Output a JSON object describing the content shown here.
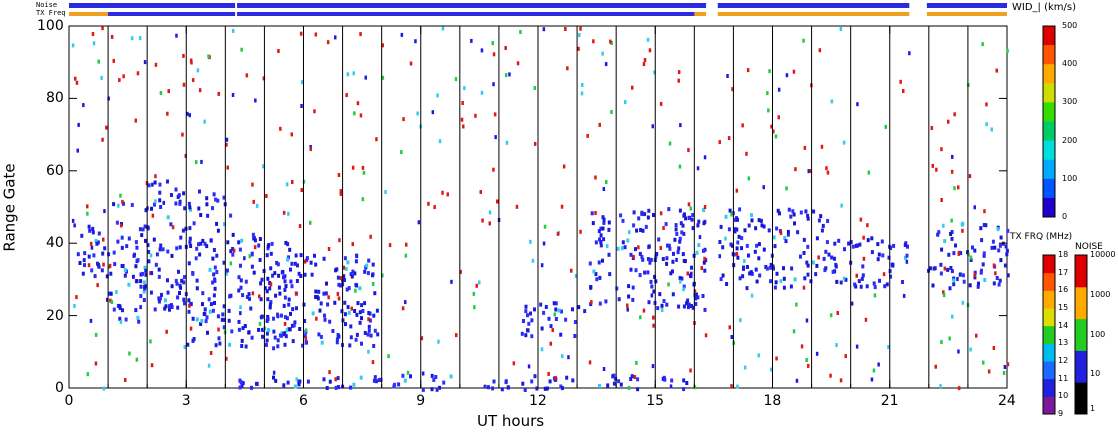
{
  "chart_data": {
    "type": "heatmap",
    "title": "",
    "xlabel": "UT hours",
    "ylabel": "Range Gate",
    "xlim": [
      0,
      24
    ],
    "ylim": [
      0,
      100
    ],
    "xticks": [
      "0",
      "3",
      "6",
      "9",
      "12",
      "15",
      "18",
      "21",
      "24"
    ],
    "yticks": [
      "0",
      "20",
      "40",
      "60",
      "80",
      "100"
    ],
    "colorbar_main": {
      "label": "WID_| (km/s)",
      "range": [
        0,
        500
      ],
      "ticks": [
        "0",
        "100",
        "200",
        "300",
        "400",
        "500"
      ]
    },
    "colorbar_txfreq": {
      "label": "TX FRQ (MHz)",
      "ticks": [
        "9",
        "10",
        "11",
        "12",
        "13",
        "14",
        "15",
        "16",
        "17",
        "18"
      ]
    },
    "colorbar_noise": {
      "label": "NOISE",
      "ticks": [
        "1",
        "10",
        "100",
        "1000",
        "10000"
      ]
    },
    "top_bars": {
      "noise_label": "Noise",
      "freq_label": "TX Freq"
    },
    "scan_boundaries_ut": [
      1,
      2,
      3,
      4,
      5,
      6,
      7,
      8,
      9,
      10,
      11,
      12,
      13,
      14,
      15,
      16,
      17,
      18,
      19,
      20,
      21,
      22,
      23
    ],
    "data_gaps_ut": [
      [
        4.25,
        4.3
      ],
      [
        16.3,
        16.6
      ],
      [
        21.5,
        21.95
      ]
    ],
    "echo_regions": [
      {
        "t0": 0.1,
        "t1": 1.0,
        "g0": 30,
        "g1": 46
      },
      {
        "t0": 1.0,
        "t1": 2.0,
        "g0": 18,
        "g1": 52
      },
      {
        "t0": 2.0,
        "t1": 3.0,
        "g0": 22,
        "g1": 58
      },
      {
        "t0": 3.0,
        "t1": 4.2,
        "g0": 12,
        "g1": 55
      },
      {
        "t0": 4.3,
        "t1": 5.7,
        "g0": 11,
        "g1": 43
      },
      {
        "t0": 5.0,
        "t1": 7.8,
        "g0": 12,
        "g1": 38
      },
      {
        "t0": 7.0,
        "t1": 8.0,
        "g0": 14,
        "g1": 22
      },
      {
        "t0": 11.5,
        "t1": 13.2,
        "g0": 14,
        "g1": 24
      },
      {
        "t0": 13.3,
        "t1": 16.3,
        "g0": 22,
        "g1": 50
      },
      {
        "t0": 16.6,
        "t1": 19.4,
        "g0": 28,
        "g1": 50
      },
      {
        "t0": 19.4,
        "t1": 21.5,
        "g0": 28,
        "g1": 42
      },
      {
        "t0": 21.95,
        "t1": 24.0,
        "g0": 28,
        "g1": 46
      },
      {
        "t0": 4.3,
        "t1": 16.3,
        "g0": 0,
        "g1": 4
      }
    ]
  }
}
